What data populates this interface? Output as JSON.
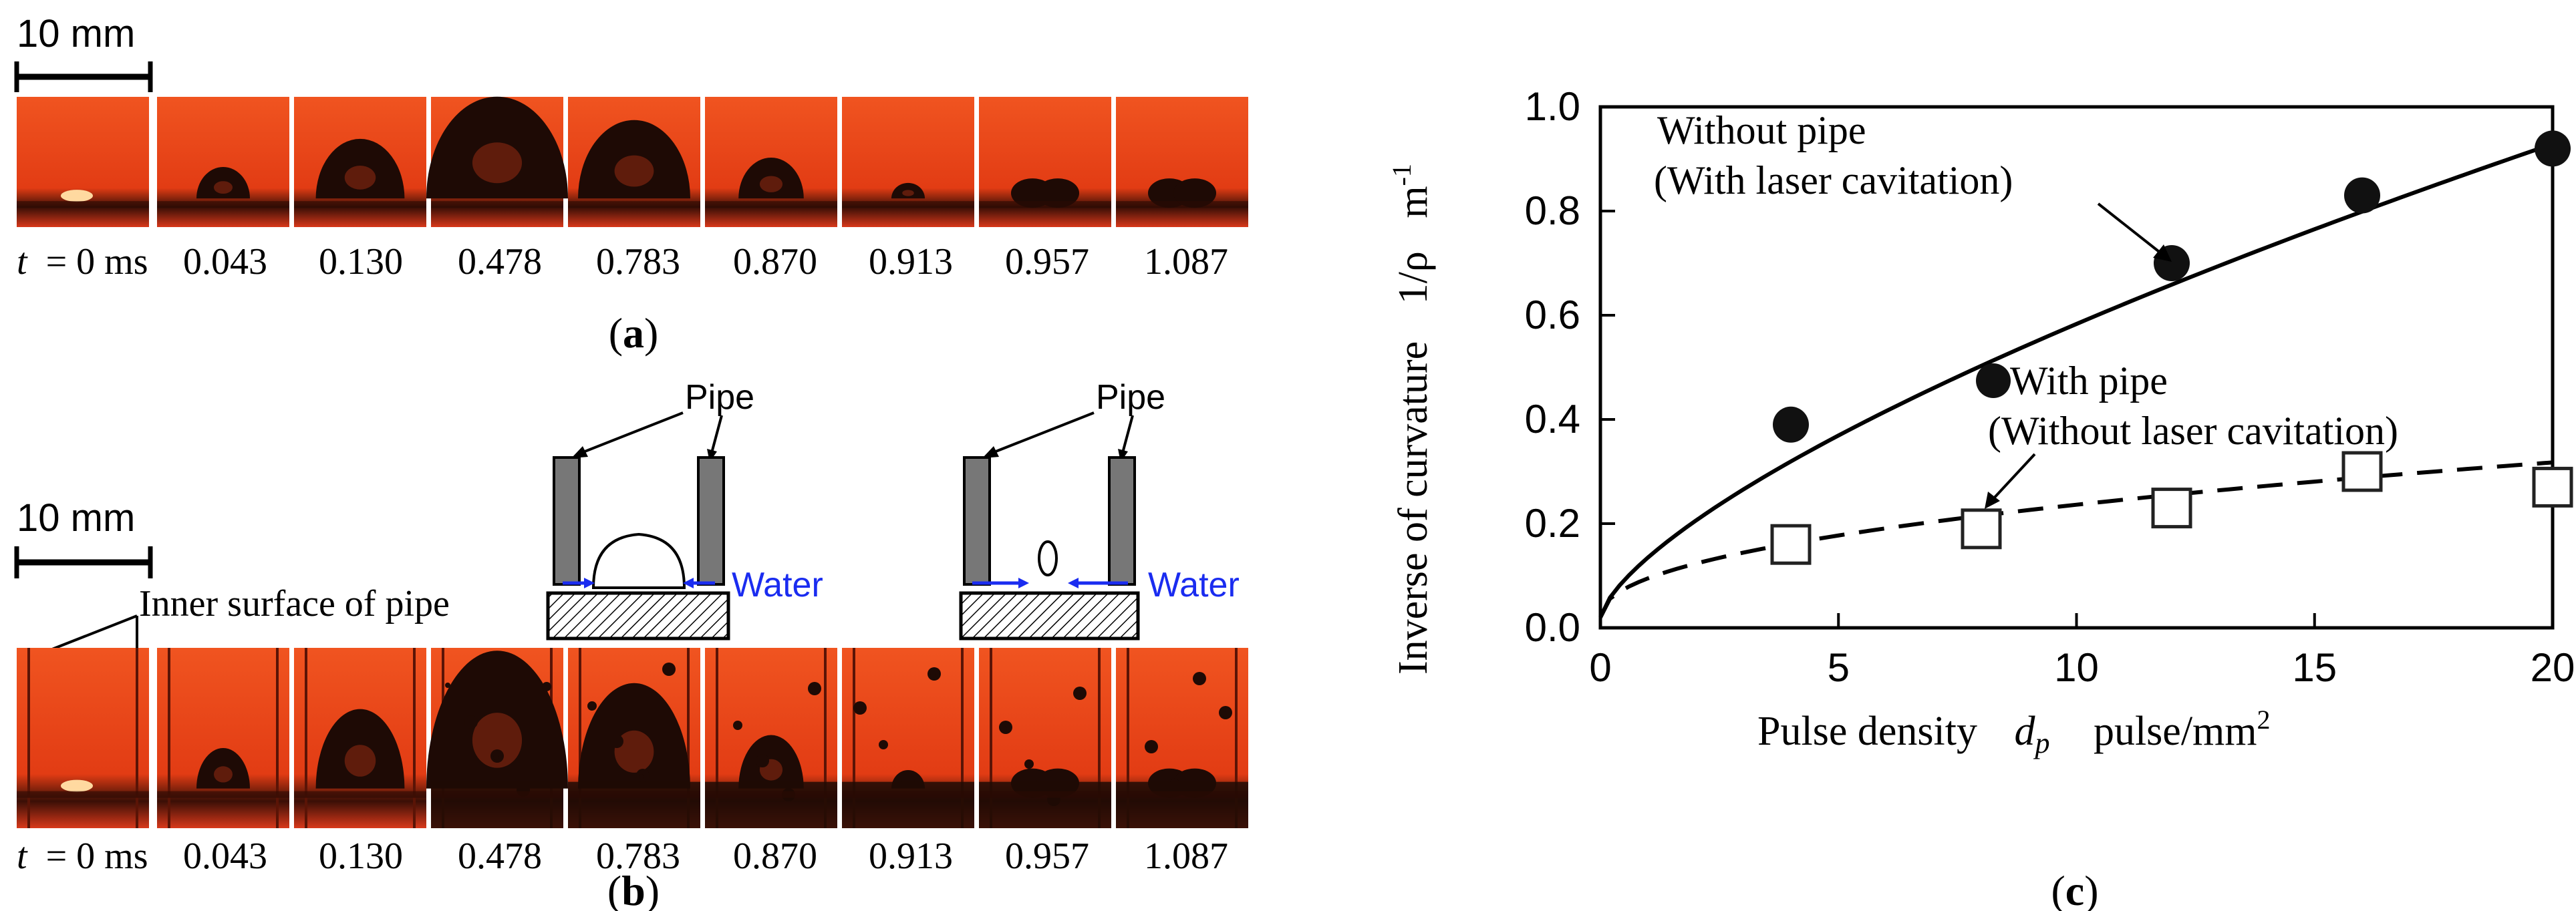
{
  "panel_a": {
    "label_paren_open": "(",
    "label": "a",
    "label_paren_close": ")",
    "scale_bar": "10 mm",
    "time_var": "t",
    "time_first": "= 0 ms",
    "times": [
      "0.043",
      "0.130",
      "0.478",
      "0.783",
      "0.870",
      "0.913",
      "0.957",
      "1.087"
    ],
    "bubble_size_pct": [
      0,
      25,
      55,
      100,
      75,
      35,
      8,
      22,
      22
    ]
  },
  "panel_b": {
    "label_paren_open": "(",
    "label": "b",
    "label_paren_close": ")",
    "scale_bar": "10 mm",
    "inner_surface_label": "Inner surface of pipe",
    "pipe_label_1": "Pipe",
    "pipe_label_2": "Pipe",
    "water_label_1": "Water",
    "water_label_2": "Water",
    "time_var": "t",
    "time_first": "= 0 ms",
    "times": [
      "0.043",
      "0.130",
      "0.478",
      "0.783",
      "0.870",
      "0.913",
      "0.957",
      "1.087"
    ]
  },
  "panel_c": {
    "label_paren_open": "(",
    "label": "c",
    "label_paren_close": ")"
  },
  "chart_data": {
    "type": "scatter",
    "xlabel_text": "Pulse density",
    "xlabel_var": "d",
    "xlabel_sub": "p",
    "xlabel_unit": "pulse/mm",
    "xlabel_unit_sup": "2",
    "ylabel_text": "Inverse of curvature",
    "ylabel_var": "1/ρ",
    "ylabel_unit": "m",
    "ylabel_unit_sup": "-1",
    "xlim": [
      0,
      20
    ],
    "ylim": [
      0,
      1.0
    ],
    "x_ticks": [
      "0",
      "5",
      "10",
      "15",
      "20"
    ],
    "y_ticks": [
      "0.0",
      "0.2",
      "0.4",
      "0.6",
      "0.8",
      "1.0"
    ],
    "series": [
      {
        "name": "Without pipe",
        "annotation_line1": "Without pipe",
        "annotation_line2": "(With laser cavitation)",
        "marker": "filled-circle",
        "x": [
          4,
          12,
          16,
          20
        ],
        "y": [
          0.39,
          0.7,
          0.83,
          0.92
        ],
        "fit": "solid"
      },
      {
        "name": "With pipe",
        "annotation_line1": "With pipe",
        "annotation_line2": "(Without laser cavitation)",
        "legend_marker": "filled-circle",
        "marker": "open-square",
        "x": [
          4,
          8,
          12,
          16,
          20
        ],
        "y": [
          0.16,
          0.19,
          0.23,
          0.3,
          0.27
        ],
        "fit": "dashed"
      }
    ],
    "origin": [
      0,
      0.02
    ]
  }
}
